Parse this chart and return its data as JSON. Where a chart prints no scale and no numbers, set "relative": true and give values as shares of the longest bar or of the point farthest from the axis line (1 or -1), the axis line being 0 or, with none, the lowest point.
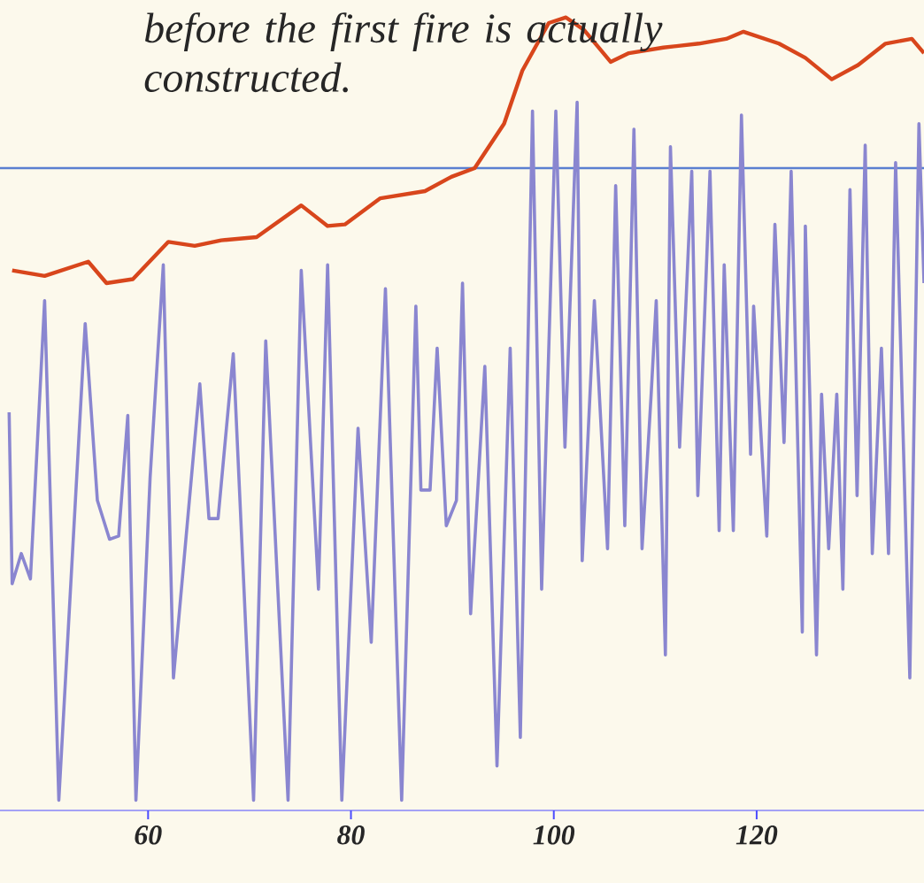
{
  "chart_data": {
    "type": "line",
    "relative": true,
    "annotations": [
      "before the first fire is actually constructed."
    ],
    "xlim": [
      45.4,
      136.5
    ],
    "xticks": [
      60,
      80,
      100,
      120
    ],
    "grid": false,
    "marker": "none",
    "line_style": "solid",
    "ref_lines": [
      {
        "axis": "y",
        "value": 0.81,
        "color": "#5a7fd0"
      }
    ],
    "series": [
      {
        "color": "#d8461c",
        "x": [
          46.6,
          49.8,
          54.1,
          55.9,
          58.5,
          62.0,
          64.6,
          67.2,
          70.7,
          75.1,
          77.7,
          79.4,
          82.9,
          87.3,
          89.9,
          92.2,
          95.1,
          96.9,
          99.5,
          101.2,
          103.0,
          105.6,
          107.4,
          110.8,
          114.3,
          117.0,
          118.7,
          122.2,
          124.8,
          127.4,
          130.0,
          132.7,
          135.3,
          136.5
        ],
        "values": [
          0.681,
          0.674,
          0.692,
          0.665,
          0.67,
          0.717,
          0.712,
          0.719,
          0.723,
          0.763,
          0.737,
          0.739,
          0.772,
          0.781,
          0.799,
          0.81,
          0.866,
          0.933,
          0.993,
          1.0,
          0.984,
          0.944,
          0.955,
          0.962,
          0.967,
          0.973,
          0.982,
          0.967,
          0.949,
          0.922,
          0.94,
          0.967,
          0.973,
          0.955
        ]
      },
      {
        "color": "#8a86d0",
        "x": [
          46.3,
          46.6,
          47.5,
          48.4,
          49.8,
          51.2,
          53.8,
          55.0,
          56.2,
          57.1,
          58.0,
          58.8,
          60.2,
          61.5,
          62.5,
          65.1,
          66.0,
          66.9,
          68.4,
          70.4,
          71.6,
          73.8,
          75.1,
          76.8,
          77.7,
          79.1,
          80.7,
          82.0,
          83.4,
          85.0,
          86.4,
          86.9,
          87.8,
          88.5,
          89.4,
          90.4,
          91.0,
          91.8,
          93.2,
          94.4,
          95.7,
          96.7,
          97.9,
          98.8,
          100.2,
          101.1,
          102.3,
          102.8,
          104.0,
          105.3,
          106.1,
          107.0,
          107.9,
          108.7,
          109.6,
          110.1,
          111.0,
          111.5,
          112.4,
          113.6,
          114.2,
          115.4,
          116.3,
          116.8,
          117.7,
          118.5,
          119.4,
          119.7,
          121.0,
          121.8,
          122.7,
          123.4,
          124.5,
          124.8,
          125.9,
          126.4,
          127.1,
          127.9,
          128.5,
          129.2,
          129.9,
          130.7,
          131.4,
          132.3,
          133.0,
          133.7,
          135.1,
          136.0,
          136.5
        ],
        "values": [
          0.502,
          0.286,
          0.324,
          0.292,
          0.643,
          0.013,
          0.614,
          0.391,
          0.342,
          0.346,
          0.498,
          0.013,
          0.42,
          0.688,
          0.167,
          0.538,
          0.368,
          0.368,
          0.576,
          0.013,
          0.592,
          0.013,
          0.681,
          0.279,
          0.688,
          0.013,
          0.482,
          0.212,
          0.658,
          0.013,
          0.636,
          0.404,
          0.404,
          0.583,
          0.359,
          0.391,
          0.665,
          0.248,
          0.56,
          0.056,
          0.583,
          0.092,
          0.882,
          0.279,
          0.882,
          0.458,
          0.893,
          0.315,
          0.643,
          0.33,
          0.788,
          0.359,
          0.859,
          0.33,
          0.525,
          0.643,
          0.196,
          0.837,
          0.458,
          0.806,
          0.397,
          0.806,
          0.353,
          0.688,
          0.353,
          0.877,
          0.449,
          0.636,
          0.346,
          0.739,
          0.464,
          0.806,
          0.225,
          0.737,
          0.196,
          0.525,
          0.33,
          0.525,
          0.279,
          0.783,
          0.397,
          0.839,
          0.324,
          0.583,
          0.324,
          0.817,
          0.167,
          0.866,
          0.665
        ]
      }
    ]
  }
}
